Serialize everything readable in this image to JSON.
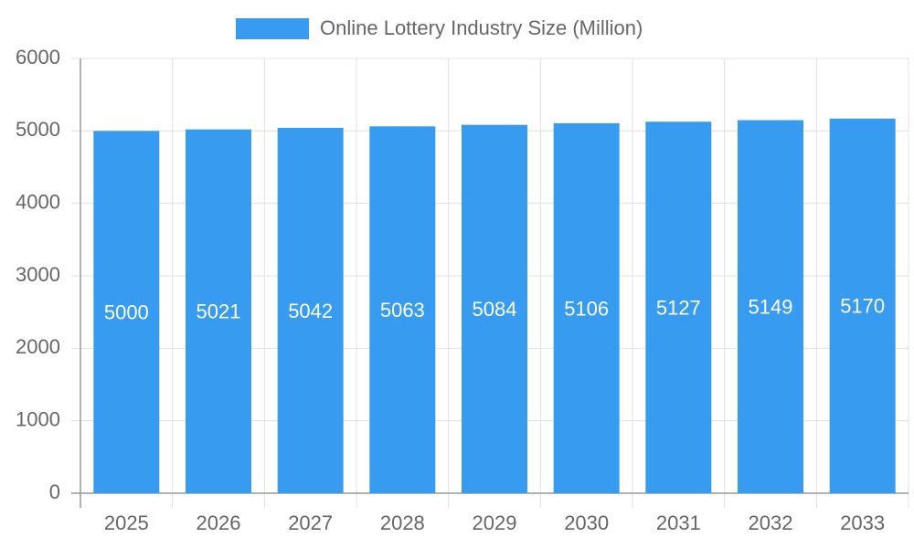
{
  "chart_data": {
    "type": "bar",
    "categories": [
      "2025",
      "2026",
      "2027",
      "2028",
      "2029",
      "2030",
      "2031",
      "2032",
      "2033"
    ],
    "series": [
      {
        "name": "Online Lottery Industry Size (Million)",
        "color": "#379bef",
        "values": [
          5000,
          5021,
          5042,
          5063,
          5084,
          5106,
          5127,
          5149,
          5170
        ]
      }
    ],
    "ylim": [
      0,
      6000
    ],
    "yticks": [
      0,
      1000,
      2000,
      3000,
      4000,
      5000,
      6000
    ],
    "grid": true,
    "legend": "top"
  }
}
